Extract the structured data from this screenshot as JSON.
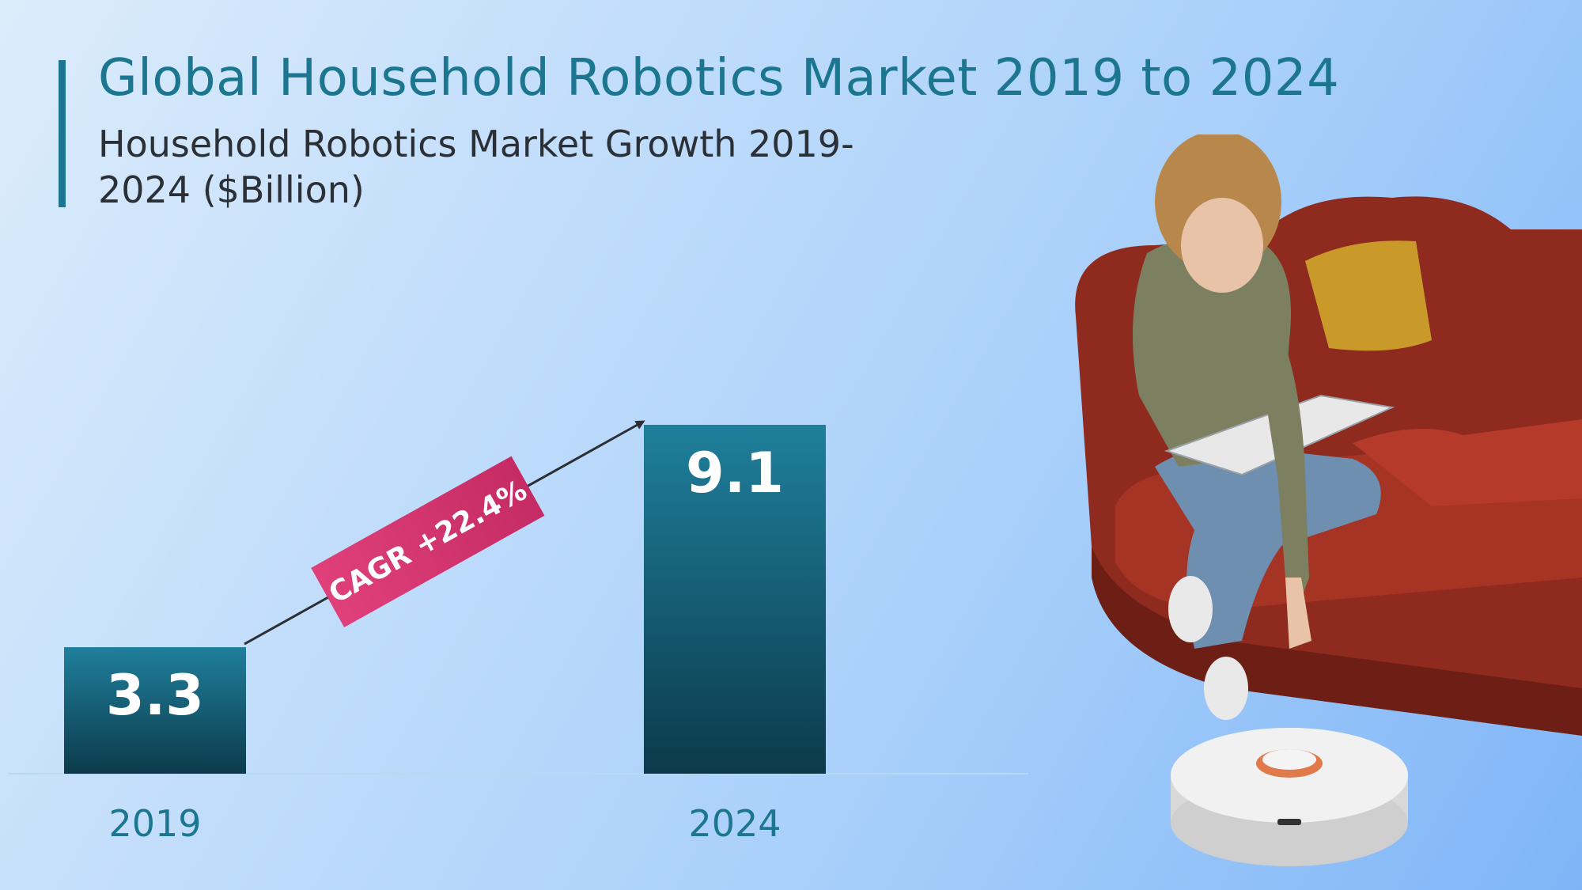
{
  "header": {
    "title": "Global Household Robotics Market 2019 to 2024",
    "subtitle": "Household Robotics Market Growth 2019-2024 ($Billion)"
  },
  "chart_data": {
    "type": "bar",
    "categories": [
      "2019",
      "2024"
    ],
    "values": [
      3.3,
      9.1
    ],
    "data_labels": [
      "3.3",
      "9.1"
    ],
    "title": "Global Household Robotics Market 2019 to 2024",
    "subtitle": "Household Robotics Market Growth 2019-2024 ($Billion)",
    "xlabel": "",
    "ylabel": "",
    "ylim": [
      0,
      9.1
    ],
    "grid": false,
    "legend": "none",
    "annotation": "CAGR +22.4%",
    "colors": {
      "bar_top": "#1f7f9b",
      "bar_bottom": "#0c3a4b",
      "annotation": "#d8336f",
      "axis_text": "#1c7690"
    }
  },
  "illustration": {
    "icon": "woman-sofa-robot-vacuum-illustration"
  }
}
